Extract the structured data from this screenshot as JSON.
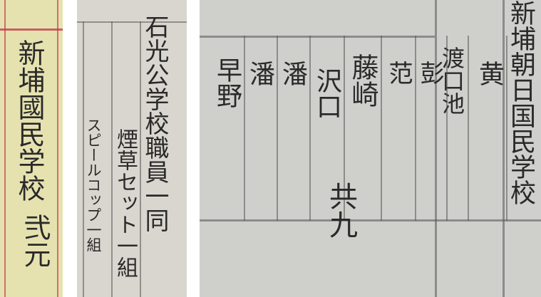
{
  "panels": [
    {
      "columns": [
        "新埔國民学校",
        "弐元"
      ]
    },
    {
      "columns": [
        "石光公学校職員一同",
        "煙草セット一組",
        "スピールコップ一組"
      ]
    },
    {
      "columns": [
        "新埔朝日国民学校",
        "黄",
        "渡口池",
        "彭",
        "范",
        "藤崎",
        "沢口",
        "潘",
        "潘",
        "早野"
      ],
      "total": "共九"
    }
  ]
}
